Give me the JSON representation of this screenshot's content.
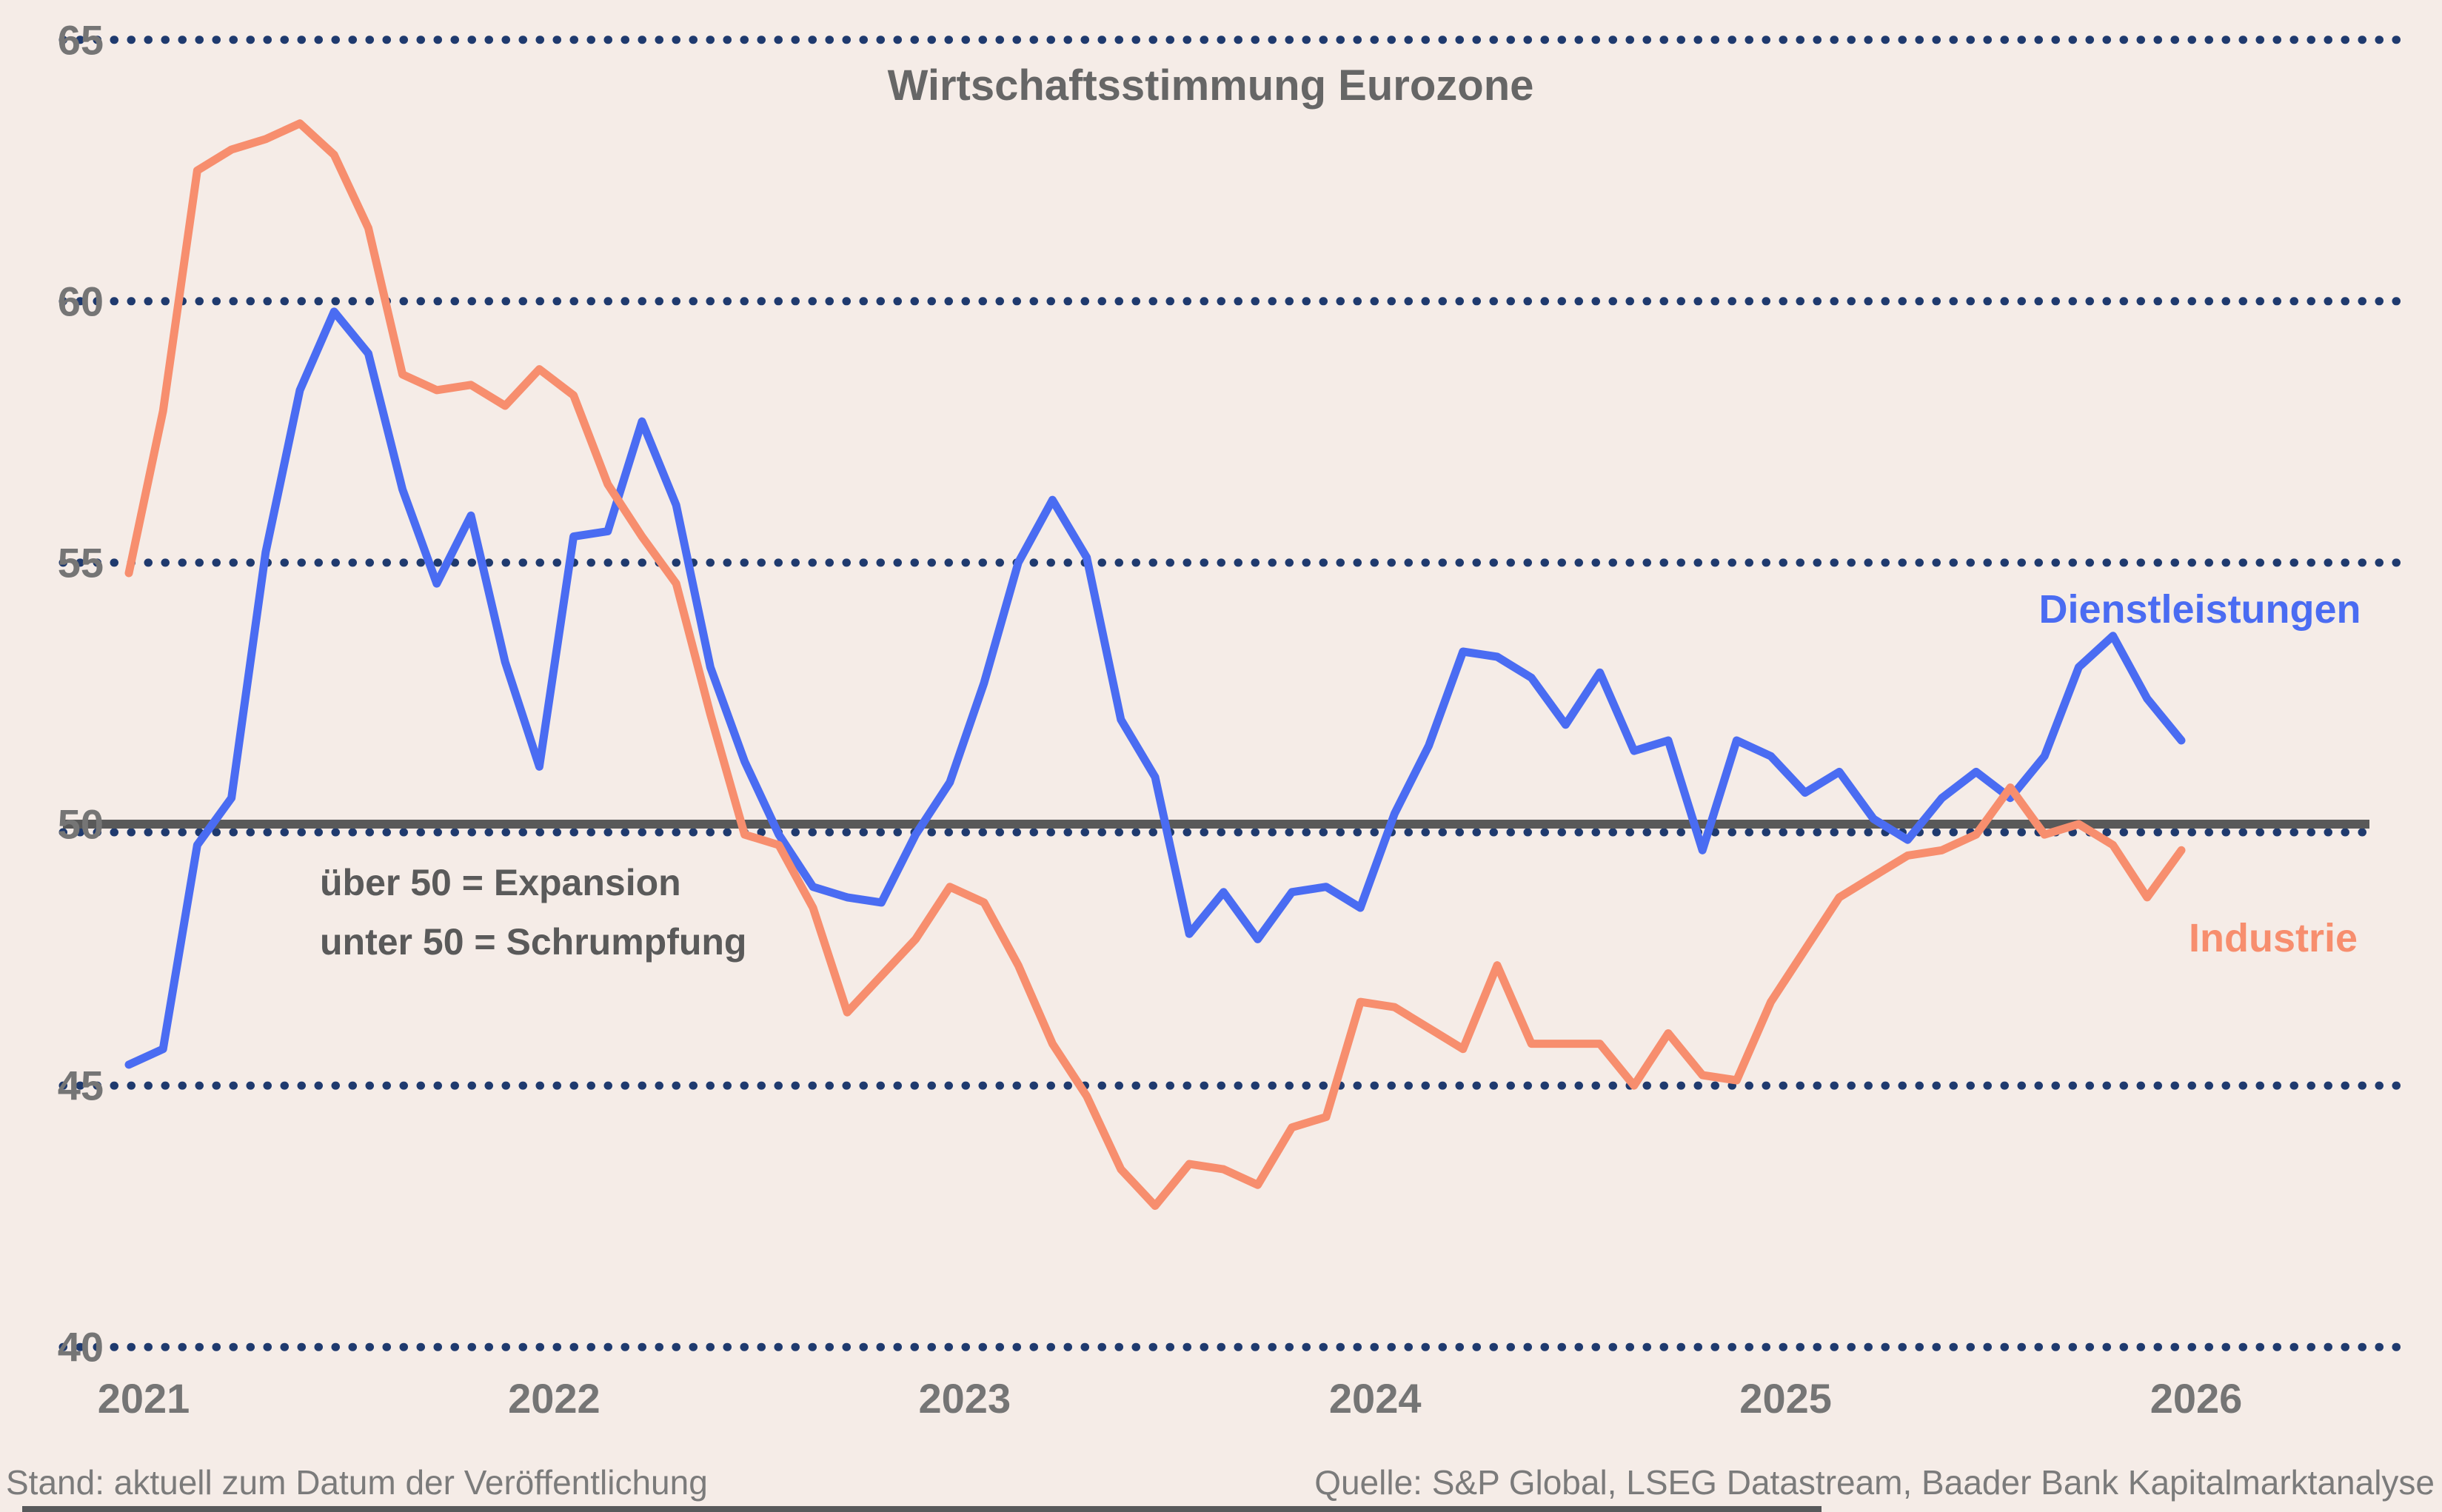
{
  "title": "Wirtschaftsstimmung Eurozone",
  "annotation": {
    "line1": "über 50 = Expansion",
    "line2": "unter 50 = Schrumpfung"
  },
  "series_labels": {
    "services": "Dienstleistungen",
    "industry": "Industrie"
  },
  "footer": {
    "left": "Stand: aktuell zum Datum der Veröffentlichung",
    "right": "Quelle: S&P Global, LSEG Datastream, Baader Bank Kapitalmarktanalyse"
  },
  "colors": {
    "background": "#f5ece7",
    "grid_dots": "#1f3a6e",
    "baseline": "#595959",
    "services": "#4a6cf2",
    "industry": "#f78e6e",
    "title_text": "#666666",
    "axis_text": "#757575",
    "footer_text": "#7b7b7b"
  },
  "chart_data": {
    "type": "line",
    "title": "Wirtschaftsstimmung Eurozone",
    "x_frequency": "monthly",
    "x_start": "2021-01",
    "x_end": "2026-01",
    "x_tick_labels": [
      "2021",
      "2022",
      "2023",
      "2024",
      "2025",
      "2026"
    ],
    "y_ticks": [
      65,
      60,
      55,
      50,
      45,
      40
    ],
    "y_tick_labels": [
      "65",
      "60",
      "55",
      "50",
      "45",
      "40"
    ],
    "ylim": [
      39.5,
      65.8
    ],
    "grid": "horizontal dotted",
    "legend_position": "inline labels at line ends",
    "reference_line": {
      "value": 50,
      "meaning_above": "über 50 = Expansion",
      "meaning_below": "unter 50 = Schrumpfung"
    },
    "series": [
      {
        "name": "Dienstleistungen",
        "color": "#4a6cf2",
        "values": [
          45.4,
          45.7,
          49.6,
          50.5,
          55.2,
          58.3,
          59.8,
          59.0,
          56.4,
          54.6,
          55.9,
          53.1,
          51.1,
          55.5,
          55.6,
          57.7,
          56.1,
          53.0,
          51.2,
          49.8,
          48.8,
          48.6,
          48.5,
          49.8,
          50.8,
          52.7,
          55.0,
          56.2,
          55.1,
          52.0,
          50.9,
          47.9,
          48.7,
          47.8,
          48.7,
          48.8,
          48.4,
          50.2,
          51.5,
          53.3,
          53.2,
          52.8,
          51.9,
          52.9,
          51.4,
          51.6,
          49.5,
          51.6,
          51.3,
          50.6,
          51.0,
          50.1,
          49.7,
          50.5,
          51.0,
          50.5,
          51.3,
          53.0,
          53.6,
          52.4,
          51.6
        ]
      },
      {
        "name": "Industrie",
        "color": "#f78e6e",
        "values": [
          54.8,
          57.9,
          62.5,
          62.9,
          63.1,
          63.4,
          62.8,
          61.4,
          58.6,
          58.3,
          58.4,
          58.0,
          58.7,
          58.2,
          56.5,
          55.5,
          54.6,
          52.1,
          49.8,
          49.6,
          48.4,
          46.4,
          47.1,
          47.8,
          48.8,
          48.5,
          47.3,
          45.8,
          44.8,
          43.4,
          42.7,
          43.5,
          43.4,
          43.1,
          44.2,
          44.4,
          46.6,
          46.5,
          46.1,
          45.7,
          47.3,
          45.8,
          45.8,
          45.8,
          45.0,
          46.0,
          45.2,
          45.1,
          46.6,
          47.6,
          48.6,
          49.0,
          49.4,
          49.5,
          49.8,
          50.7,
          49.8,
          50.0,
          49.6,
          48.6,
          49.5
        ]
      }
    ]
  }
}
